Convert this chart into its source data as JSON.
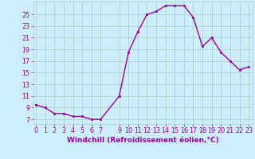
{
  "x": [
    0,
    1,
    2,
    3,
    4,
    5,
    6,
    7,
    9,
    10,
    11,
    12,
    13,
    14,
    15,
    16,
    17,
    18,
    19,
    20,
    21,
    22,
    23
  ],
  "y": [
    9.5,
    9.0,
    8.0,
    8.0,
    7.5,
    7.5,
    7.0,
    7.0,
    11.0,
    18.5,
    22.0,
    25.0,
    25.5,
    26.5,
    26.5,
    26.5,
    24.5,
    19.5,
    21.0,
    18.5,
    17.0,
    15.5,
    16.0
  ],
  "line_color": "#990099",
  "marker": "s",
  "marker_size": 2.0,
  "bg_color": "#cceeff",
  "grid_color": "#aaccbb",
  "xlabel": "Windchill (Refroidissement éolien,°C)",
  "xlabel_fontsize": 6.5,
  "yticks": [
    7,
    9,
    11,
    13,
    15,
    17,
    19,
    21,
    23,
    25
  ],
  "xticks": [
    0,
    1,
    2,
    3,
    4,
    5,
    6,
    7,
    9,
    10,
    11,
    12,
    13,
    14,
    15,
    16,
    17,
    18,
    19,
    20,
    21,
    22,
    23
  ],
  "xlim": [
    -0.3,
    23.4
  ],
  "ylim": [
    6.2,
    27.2
  ],
  "tick_fontsize": 5.8,
  "tick_color": "#990099",
  "line_width": 1.0
}
